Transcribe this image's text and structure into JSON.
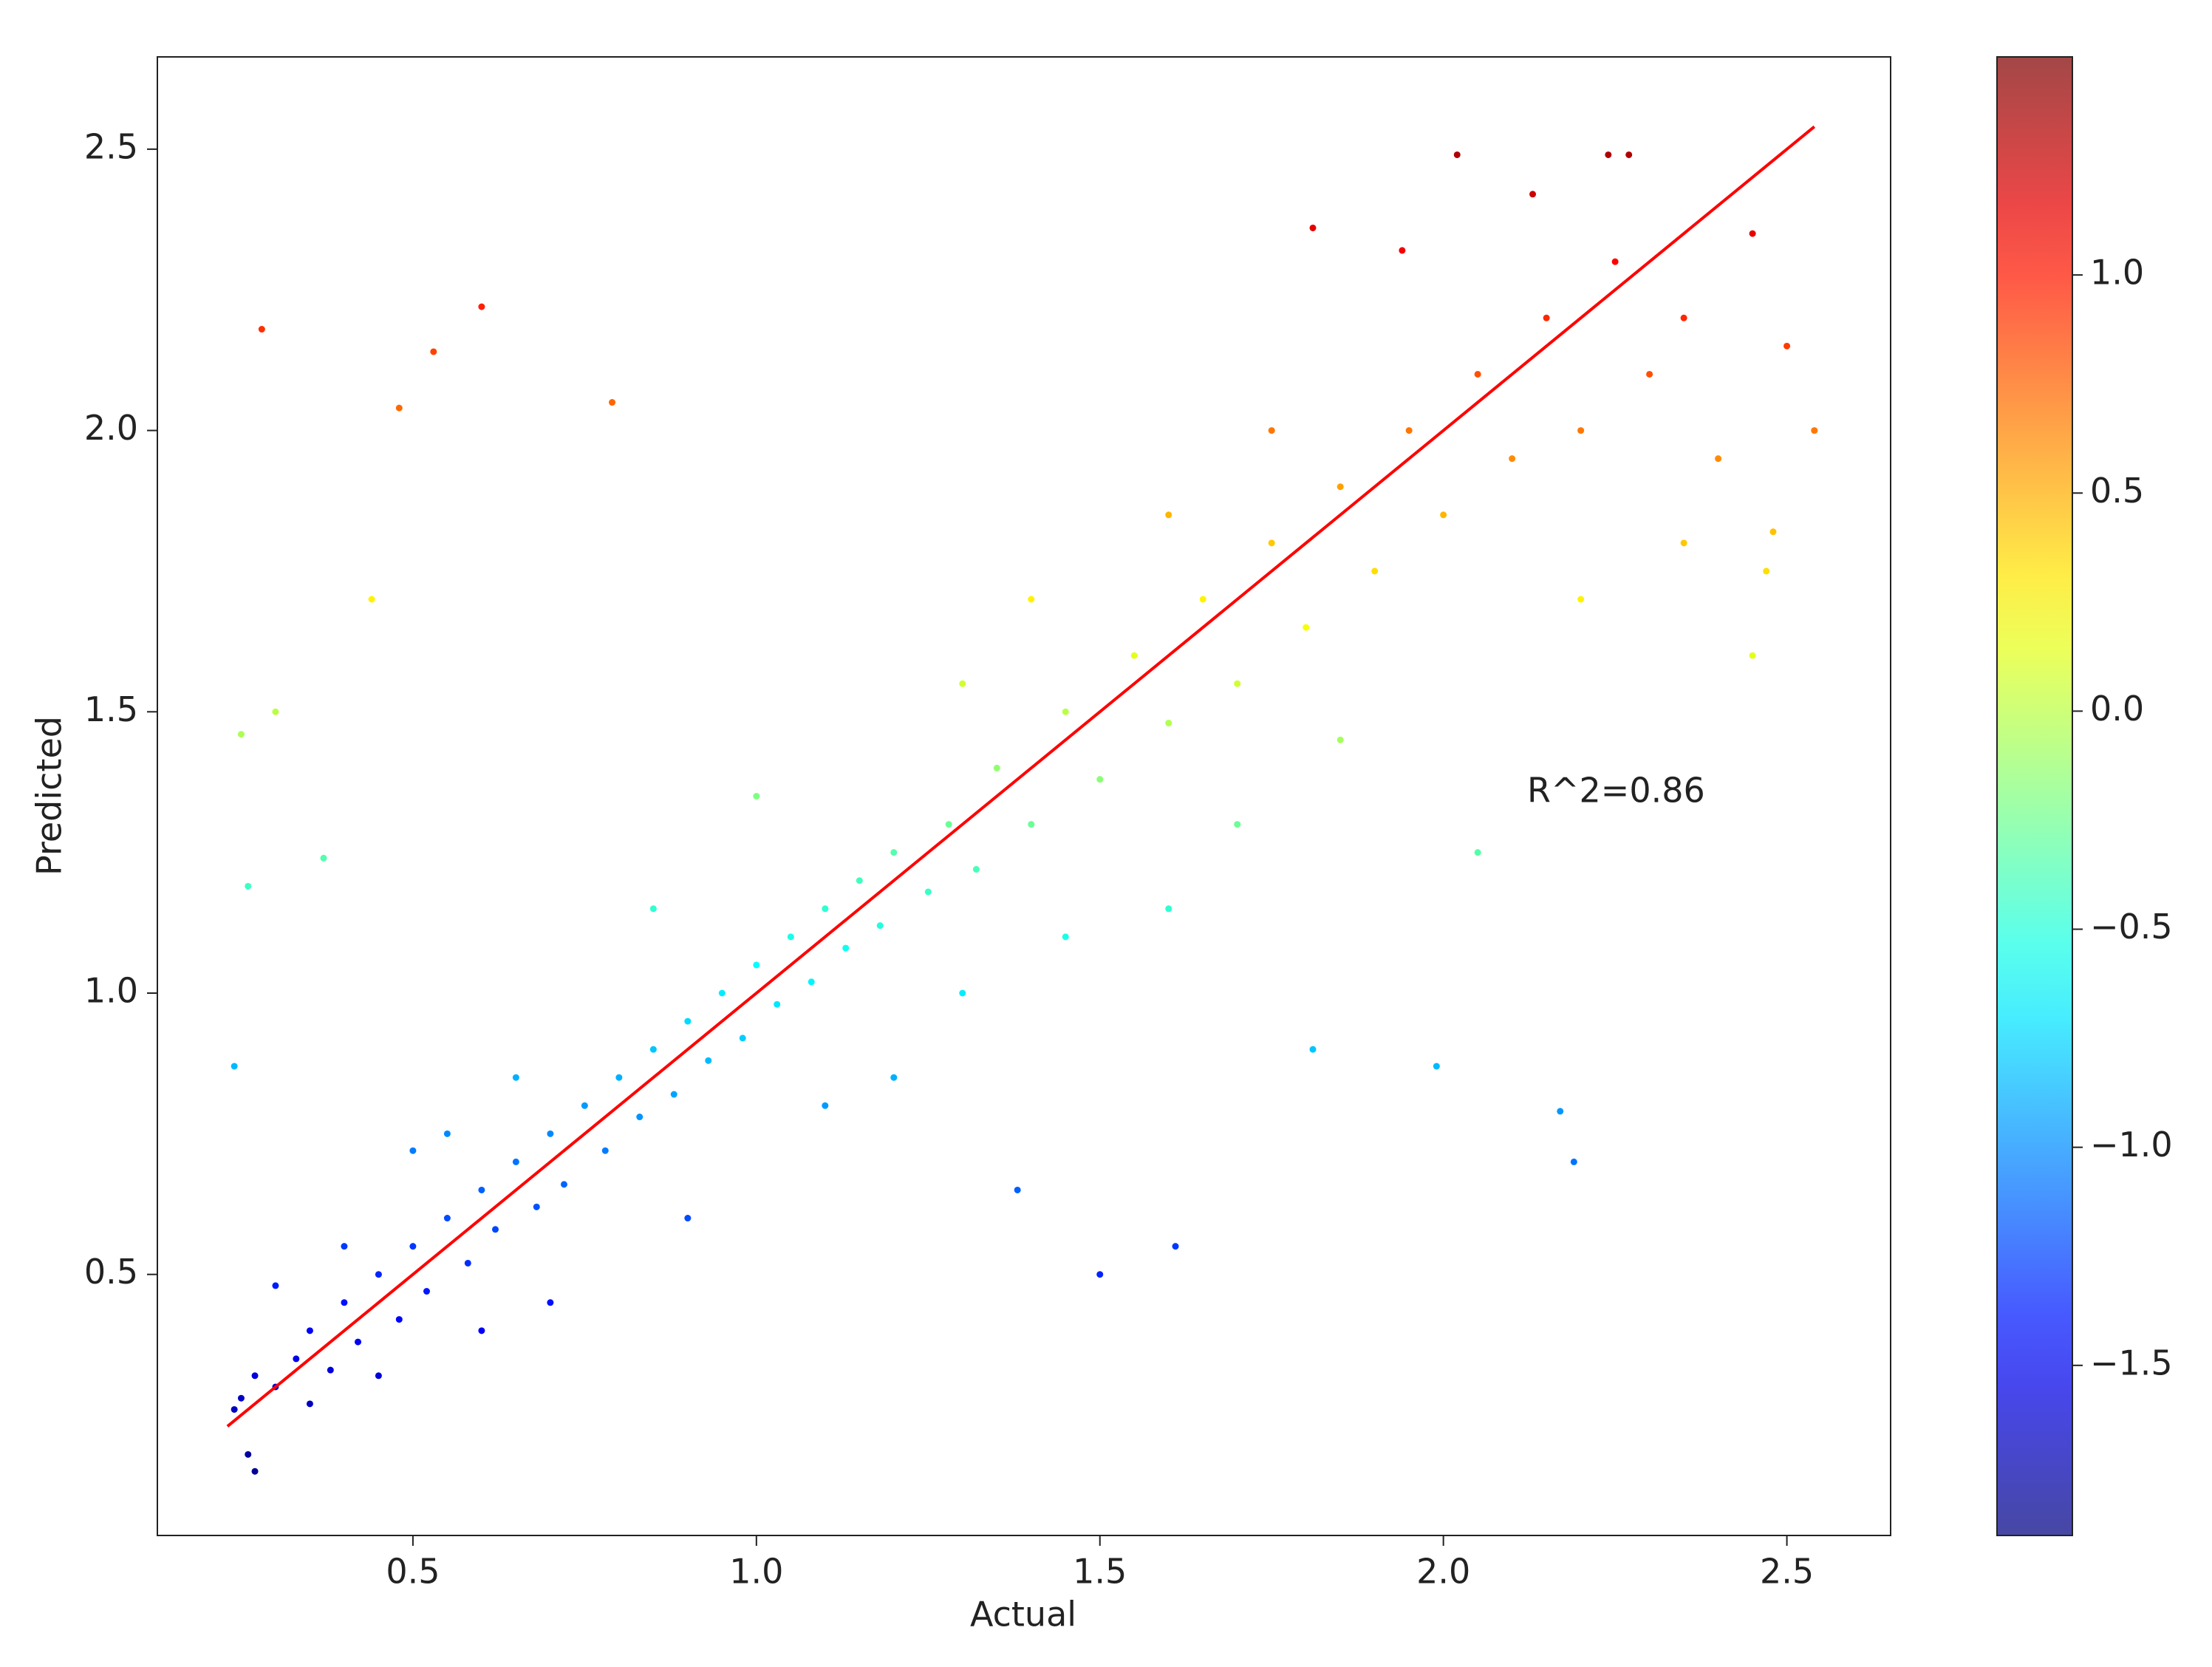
{
  "chart_data": {
    "type": "scatter",
    "xlabel": "Actual",
    "ylabel": "Predicted",
    "annotation": "R^2=0.86",
    "colormap": "jet",
    "x": [
      0.25,
      0.27,
      0.3,
      0.33,
      0.35,
      0.38,
      0.4,
      0.42,
      0.45,
      0.48,
      0.5,
      0.52,
      0.55,
      0.58,
      0.6,
      0.62,
      0.65,
      0.68,
      0.7,
      0.72,
      0.75,
      0.78,
      0.8,
      0.83,
      0.85,
      0.88,
      0.9,
      0.93,
      0.95,
      0.98,
      1.0,
      1.03,
      1.05,
      1.08,
      1.1,
      1.13,
      1.15,
      1.18,
      1.2,
      1.25,
      1.28,
      1.32,
      1.35,
      1.4,
      1.45,
      1.5,
      1.55,
      1.6,
      1.65,
      1.7,
      1.75,
      1.8,
      1.85,
      1.9,
      1.95,
      2.0,
      2.05,
      2.1,
      2.15,
      2.2,
      2.25,
      2.3,
      2.35,
      2.4,
      2.45,
      2.5,
      2.54,
      0.28,
      0.53,
      0.6,
      0.48,
      0.79,
      0.3,
      0.25,
      0.44,
      0.26,
      0.24,
      0.37,
      1.5,
      1.61,
      1.38,
      2.17,
      2.19,
      1.99,
      1.81,
      2.05,
      2.02,
      2.24,
      2.27,
      2.13,
      1.81,
      1.94,
      2.47,
      2.48,
      0.26,
      0.27,
      0.24,
      0.35,
      0.45,
      0.4,
      0.3,
      0.6,
      0.7,
      0.55,
      0.65,
      0.5,
      0.9,
      1.1,
      1.2,
      0.85,
      1.0,
      1.3,
      1.45,
      1.6,
      1.4,
      1.3,
      1.7,
      1.85,
      1.75,
      1.6,
      2.2,
      2.35,
      2.45
    ],
    "values": [
      0.28,
      0.32,
      0.3,
      0.35,
      0.4,
      0.33,
      0.45,
      0.38,
      0.5,
      0.42,
      0.55,
      0.47,
      0.6,
      0.52,
      0.65,
      0.58,
      0.7,
      0.62,
      0.75,
      0.66,
      0.8,
      0.72,
      0.85,
      0.78,
      0.9,
      0.82,
      0.95,
      0.88,
      1.0,
      0.92,
      1.05,
      0.98,
      1.1,
      1.02,
      1.15,
      1.08,
      1.2,
      1.12,
      1.25,
      1.18,
      1.3,
      1.22,
      1.4,
      1.3,
      1.5,
      1.38,
      1.6,
      1.48,
      1.7,
      1.55,
      1.8,
      1.65,
      1.9,
      1.75,
      2.0,
      1.85,
      2.1,
      1.95,
      2.2,
      2.0,
      2.3,
      2.1,
      2.2,
      1.95,
      2.35,
      2.15,
      2.0,
      2.18,
      2.14,
      2.22,
      2.04,
      2.05,
      1.5,
      1.46,
      1.7,
      1.19,
      0.87,
      1.24,
      0.5,
      0.55,
      0.65,
      0.79,
      0.7,
      0.87,
      0.9,
      1.25,
      2.49,
      2.49,
      2.49,
      2.42,
      2.36,
      2.32,
      1.75,
      1.82,
      0.18,
      0.15,
      0.26,
      0.27,
      0.32,
      0.55,
      0.48,
      0.4,
      0.45,
      0.75,
      0.85,
      0.72,
      0.6,
      0.8,
      0.85,
      1.15,
      1.35,
      1.0,
      1.1,
      1.15,
      1.7,
      1.55,
      1.3,
      1.45,
      2.0,
      1.85,
      1.7,
      1.8,
      1.6
    ],
    "c": [
      -1.65,
      -1.59,
      -1.62,
      -1.55,
      -1.49,
      -1.58,
      -1.42,
      -1.51,
      -1.35,
      -1.46,
      -1.28,
      -1.39,
      -1.22,
      -1.32,
      -1.15,
      -1.24,
      -1.08,
      -1.19,
      -1.01,
      -1.13,
      -0.95,
      -1.05,
      -0.88,
      -0.97,
      -0.81,
      -0.92,
      -0.74,
      -0.84,
      -0.68,
      -0.78,
      -0.61,
      -0.7,
      -0.54,
      -0.65,
      -0.47,
      -0.57,
      -0.41,
      -0.51,
      -0.34,
      -0.43,
      -0.27,
      -0.38,
      -0.14,
      -0.27,
      0,
      -0.16,
      0.14,
      -0.03,
      0.27,
      0.07,
      0.41,
      0.2,
      0.54,
      0.34,
      0.68,
      0.47,
      0.81,
      0.61,
      0.95,
      0.68,
      1.08,
      0.81,
      0.95,
      0.61,
      1.15,
      0.88,
      0.68,
      0.92,
      0.86,
      0.97,
      0.73,
      0.74,
      0,
      -0.05,
      0.27,
      -0.42,
      -0.85,
      -0.35,
      -1.35,
      -1.28,
      -1.15,
      -0.96,
      -1.08,
      -0.85,
      -0.81,
      -0.34,
      1.34,
      1.34,
      1.34,
      1.24,
      1.16,
      1.11,
      0.34,
      0.43,
      -1.78,
      -1.82,
      -1.67,
      -1.66,
      -1.59,
      -1.28,
      -1.38,
      -1.49,
      -1.42,
      -1.01,
      -0.88,
      -1.05,
      -1.22,
      -0.95,
      -0.88,
      -0.47,
      -0.2,
      -0.68,
      -0.54,
      -0.47,
      0.27,
      0.07,
      -0.27,
      -0.07,
      0.68,
      0.47,
      0.27,
      0.41,
      0.14
    ],
    "fit_line": {
      "x": [
        0.23,
        2.54
      ],
      "values": [
        0.23,
        2.54
      ],
      "color": "#ff0000"
    },
    "xlim": [
      0.128,
      2.651
    ],
    "xticks": [
      0.5,
      {
        "value": 1,
        "label": "1.0"
      },
      1.5,
      {
        "value": 2,
        "label": "2.0"
      },
      2.5
    ],
    "ylim": [
      0.036,
      2.664
    ],
    "yticks": [
      0.5,
      {
        "value": 1,
        "label": "1.0"
      },
      1.5,
      {
        "value": 2,
        "label": "2.0"
      },
      2.5
    ],
    "clim": [
      -1.89,
      1.5
    ],
    "cticks": [
      {
        "value": -1.5,
        "label": "−1.5"
      },
      {
        "value": -1,
        "label": "−1.0"
      },
      {
        "value": -0.5,
        "label": "−0.5"
      },
      {
        "value": 0,
        "label": "0.0"
      },
      0.5,
      {
        "value": 1,
        "label": "1.0"
      }
    ]
  }
}
